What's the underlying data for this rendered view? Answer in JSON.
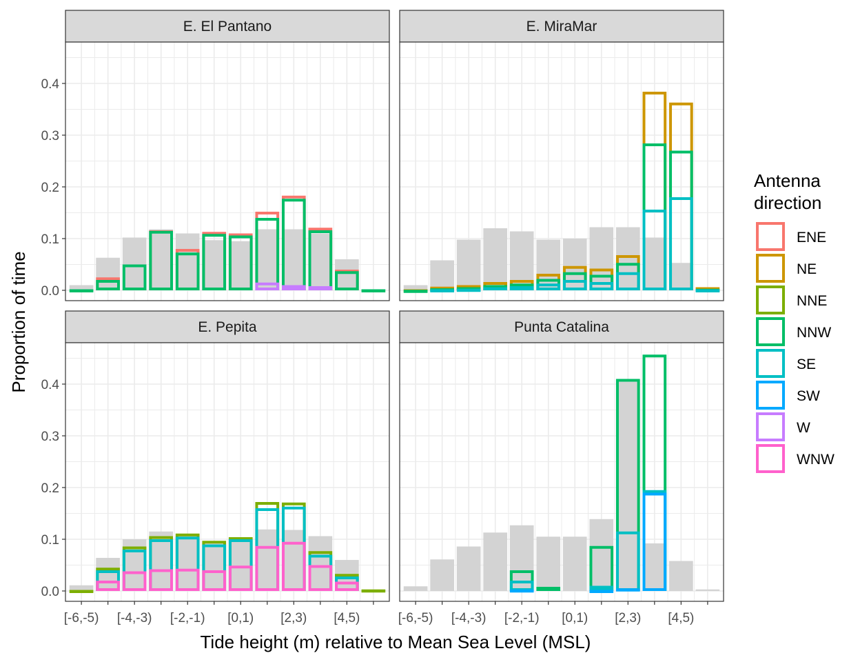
{
  "chart_data": {
    "type": "bar",
    "xlabel": "Tide height (m) relative to Mean Sea Level (MSL)",
    "ylabel": "Proportion of time",
    "ylim": [
      -0.02,
      0.48
    ],
    "yticks": [
      0.0,
      0.1,
      0.2,
      0.3,
      0.4
    ],
    "ytick_labels": [
      "0.0",
      "0.1",
      "0.2",
      "0.3",
      "0.4"
    ],
    "bins": [
      "[-6,-5)",
      "[-5,-4)",
      "[-4,-3)",
      "[-3,-2)",
      "[-2,-1)",
      "[-1,0)",
      "[0,1)",
      "[1,2)",
      "[2,3)",
      "[3,4)",
      "[4,5)",
      "[5,6)"
    ],
    "xtick_labels": [
      "[-6,-5)",
      "[-4,-3)",
      "[-2,-1)",
      "[0,1)",
      "[2,3)",
      "[4,5)"
    ],
    "legend": {
      "title": "Antenna\ndirection",
      "position": "right",
      "entries": [
        {
          "name": "ENE",
          "color": "#F8766D"
        },
        {
          "name": "NE",
          "color": "#CD9600"
        },
        {
          "name": "NNE",
          "color": "#7CAE00"
        },
        {
          "name": "NNW",
          "color": "#00BE67"
        },
        {
          "name": "SE",
          "color": "#00BFC4"
        },
        {
          "name": "SW",
          "color": "#00A9FF"
        },
        {
          "name": "W",
          "color": "#C77CFF"
        },
        {
          "name": "WNW",
          "color": "#FF61CC"
        }
      ]
    },
    "background_color": "#d3d3d3",
    "grid": true,
    "panels": [
      {
        "title": "E. El Pantano",
        "background": [
          0.01,
          0.063,
          0.102,
          0.118,
          0.11,
          0.097,
          0.095,
          0.118,
          0.118,
          0.11,
          0.06,
          0.002
        ],
        "series": [
          {
            "name": "ENE",
            "values": [
              0,
              0.025,
              0,
              0.116,
              0.08,
              0.113,
              0.11,
              0.152,
              0.183,
              0.121,
              0.04,
              0
            ]
          },
          {
            "name": "NNW",
            "values": [
              0.002,
              0.02,
              0.05,
              0.115,
              0.073,
              0.109,
              0.106,
              0.14,
              0.177,
              0.116,
              0.037,
              0.002
            ]
          },
          {
            "name": "W",
            "values": [
              0,
              0,
              0,
              0,
              0,
              0,
              0,
              0.015,
              0.01,
              0.008,
              0,
              0
            ]
          }
        ]
      },
      {
        "title": "E. MiraMar",
        "background": [
          0.01,
          0.058,
          0.098,
          0.12,
          0.114,
          0.098,
          0.1,
          0.122,
          0.122,
          0.102,
          0.053,
          0
        ],
        "series": [
          {
            "name": "NE",
            "values": [
              0.002,
              0.007,
              0.01,
              0.016,
              0.02,
              0.032,
              0.047,
              0.042,
              0.068,
              0.384,
              0.363,
              0.006
            ]
          },
          {
            "name": "NNW",
            "values": [
              0.001,
              0.004,
              0.006,
              0.01,
              0.013,
              0.022,
              0.035,
              0.03,
              0.053,
              0.284,
              0.27,
              0.003
            ]
          },
          {
            "name": "SE",
            "values": [
              0,
              0.002,
              0.003,
              0.006,
              0.008,
              0.013,
              0.02,
              0.016,
              0.035,
              0.156,
              0.18,
              0.002
            ]
          }
        ]
      },
      {
        "title": "E. Pepita",
        "background": [
          0.011,
          0.064,
          0.1,
          0.115,
          0.11,
          0.092,
          0.1,
          0.119,
          0.118,
          0.106,
          0.06,
          0.002
        ],
        "series": [
          {
            "name": "NNE",
            "values": [
              0.002,
              0.045,
              0.086,
              0.106,
              0.111,
              0.097,
              0.104,
              0.172,
              0.171,
              0.077,
              0.033,
              0.003
            ]
          },
          {
            "name": "SE",
            "values": [
              0,
              0.04,
              0.08,
              0.1,
              0.105,
              0.09,
              0.1,
              0.16,
              0.163,
              0.07,
              0.028,
              0
            ]
          },
          {
            "name": "WNW",
            "values": [
              0,
              0.02,
              0.038,
              0.042,
              0.043,
              0.04,
              0.049,
              0.087,
              0.095,
              0.05,
              0.018,
              0
            ]
          }
        ]
      },
      {
        "title": "Punta Catalina",
        "background": [
          0.009,
          0.061,
          0.086,
          0.113,
          0.127,
          0.105,
          0.105,
          0.139,
          0.409,
          0.092,
          0.058,
          0.003
        ],
        "series": [
          {
            "name": "NNW",
            "values": [
              0,
              0,
              0,
              0,
              0.04,
              0.008,
              0,
              0.087,
              0.41,
              0.457,
              0,
              0
            ]
          },
          {
            "name": "SE",
            "values": [
              0,
              0,
              0,
              0,
              0.02,
              0,
              0,
              0.01,
              0.115,
              0.195,
              0,
              0
            ]
          },
          {
            "name": "SW",
            "values": [
              0,
              0,
              0,
              0,
              0.003,
              0,
              0,
              0.002,
              0.005,
              0.19,
              0,
              0
            ]
          }
        ]
      }
    ]
  }
}
